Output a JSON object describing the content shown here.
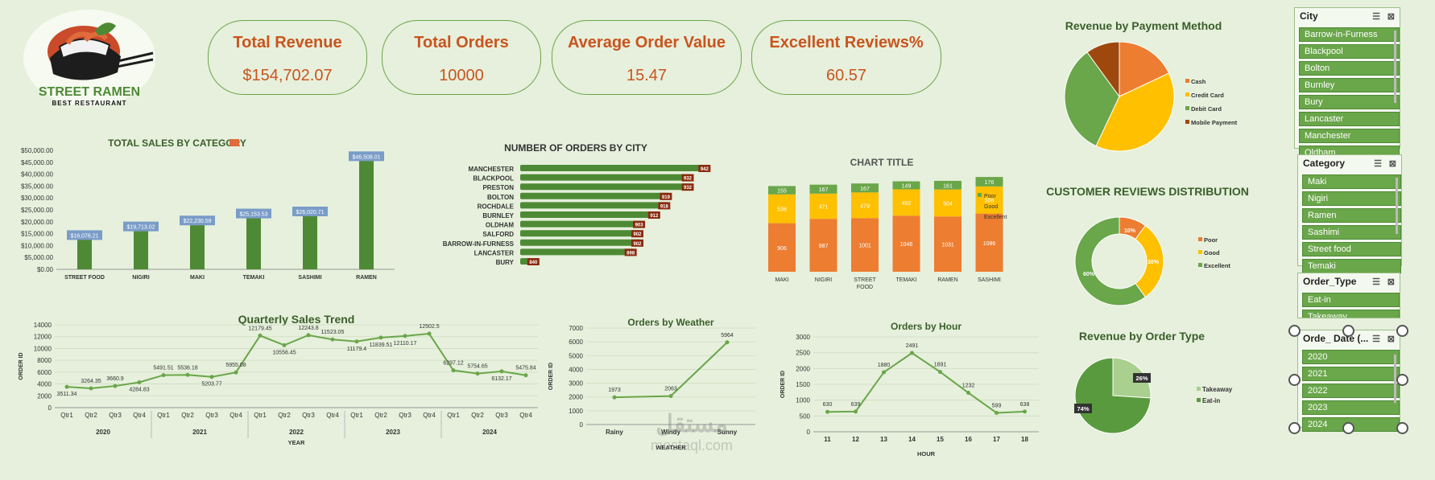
{
  "logo": {
    "name": "STREET RAMEN",
    "tagline": "BEST RESTAURANT"
  },
  "kpis": [
    {
      "title": "Total Revenue",
      "value": "$154,702.07"
    },
    {
      "title": "Total Orders",
      "value": "10000"
    },
    {
      "title": "Average Order Value",
      "value": "15.47"
    },
    {
      "title": "Excellent Reviews%",
      "value": "60.57"
    }
  ],
  "colors": {
    "green": "#6aa64a",
    "darkgreen": "#4e8a35",
    "orange": "#ed7d31",
    "yellow": "#ffc000",
    "brown": "#9e480e",
    "label_blue": "#7a9cc8",
    "title_orange": "#c9541e"
  },
  "slicers": {
    "city": {
      "title": "City",
      "items": [
        "Barrow-in-Furness",
        "Blackpool",
        "Bolton",
        "Burnley",
        "Bury",
        "Lancaster",
        "Manchester",
        "Oldham"
      ]
    },
    "category": {
      "title": "Category",
      "items": [
        "Maki",
        "Nigiri",
        "Ramen",
        "Sashimi",
        "Street food",
        "Temaki"
      ]
    },
    "order_type": {
      "title": "Order_Type",
      "items": [
        "Eat-in",
        "Takeaway"
      ]
    },
    "order_date": {
      "title": "Orde_ Date (...",
      "items": [
        "2020",
        "2021",
        "2022",
        "2023",
        "2024"
      ]
    }
  },
  "watermark": {
    "arabic": "مستقل",
    "latin": "mostaql.com"
  },
  "chart_data": [
    {
      "id": "sales_by_category",
      "type": "bar",
      "title": "TOTAL SALES BY CATEGORY",
      "categories": [
        "STREET FOOD",
        "NIGIRI",
        "MAKI",
        "TEMAKI",
        "SASHIMI",
        "RAMEN"
      ],
      "values": [
        16076.21,
        19713.02,
        22230.59,
        25153.53,
        26020.71,
        46508.01
      ],
      "data_labels": [
        "$16,076.21",
        "$19,713.02",
        "$22,230.59",
        "$25,153.53",
        "$26,020.71",
        "$46,508.01"
      ],
      "ylim": [
        0,
        50000
      ],
      "y_ticks": [
        "$0.00",
        "$5,000.00",
        "$10,000.00",
        "$15,000.00",
        "$20,000.00",
        "$25,000.00",
        "$30,000.00",
        "$35,000.00",
        "$40,000.00",
        "$45,000.00",
        "$50,000.00"
      ],
      "grid": false
    },
    {
      "id": "orders_by_city",
      "type": "bar",
      "orientation": "horizontal",
      "title": "NUMBER OF ORDERS BY CITY",
      "categories": [
        "MANCHESTER",
        "BLACKPOOL",
        "PRESTON",
        "BOLTON",
        "ROCHDALE",
        "BURNLEY",
        "OLDHAM",
        "SALFORD",
        "BARROW-IN-FURNESS",
        "LANCASTER",
        "BURY"
      ],
      "values": [
        942,
        932,
        932,
        919,
        918,
        912,
        903,
        902,
        902,
        898,
        840
      ],
      "xlim": [
        830,
        950
      ]
    },
    {
      "id": "stacked_reviews",
      "type": "bar",
      "stacked": true,
      "title": "CHART TITLE",
      "categories": [
        "MAKI",
        "NIGIRI",
        "STREET FOOD",
        "TEMAKI",
        "RAMEN",
        "SASHIMI"
      ],
      "category_lines": [
        [
          "MAKI"
        ],
        [
          "NIGIRI"
        ],
        [
          "STREET",
          "FOOD"
        ],
        [
          "TEMAKI"
        ],
        [
          "RAMEN"
        ],
        [
          "SASHIMI"
        ]
      ],
      "series": [
        {
          "name": "Excellent",
          "values": [
            906,
            987,
            1001,
            1046,
            1031,
            1086
          ]
        },
        {
          "name": "Good",
          "values": [
            538,
            471,
            479,
            492,
            504,
            506
          ]
        },
        {
          "name": "Poor",
          "values": [
            155,
            167,
            167,
            149,
            161,
            176
          ]
        }
      ],
      "legend": [
        "Poor",
        "Good",
        "Excellent"
      ],
      "legend_position": "right"
    },
    {
      "id": "payment_method",
      "type": "pie",
      "title": "Revenue by Payment Method",
      "labels": [
        "Cash",
        "Credit Card",
        "Debit Card",
        "Mobile Payment"
      ],
      "values": [
        18,
        39,
        33,
        10
      ],
      "legend_position": "right"
    },
    {
      "id": "reviews_distribution",
      "type": "pie",
      "donut": true,
      "title": "CUSTOMER REVIEWS DISTRIBUTION",
      "labels": [
        "Poor",
        "Good",
        "Excellent"
      ],
      "values": [
        10,
        30,
        60
      ],
      "data_labels": [
        "10%",
        "30%",
        "60%"
      ],
      "legend_position": "right"
    },
    {
      "id": "order_type",
      "type": "pie",
      "title": "Revenue by Order Type",
      "labels": [
        "Takeaway",
        "Eat-in"
      ],
      "values": [
        26,
        74
      ],
      "data_labels": [
        "26%",
        "74%"
      ],
      "legend_position": "right"
    },
    {
      "id": "quarterly_trend",
      "type": "line",
      "title": "Quarterly Sales Trend",
      "xlabel": "YEAR",
      "ylabel": "ORDER ID",
      "x": [
        "Qtr1",
        "Qtr2",
        "Qtr3",
        "Qtr4",
        "Qtr1",
        "Qtr2",
        "Qtr3",
        "Qtr4",
        "Qtr1",
        "Qtr2",
        "Qtr3",
        "Qtr4",
        "Qtr1",
        "Qtr2",
        "Qtr3",
        "Qtr4",
        "Qtr1",
        "Qtr2",
        "Qtr3",
        "Qtr4"
      ],
      "years": [
        "2020",
        "2021",
        "2022",
        "2023",
        "2024"
      ],
      "values": [
        3511.34,
        3264.35,
        3660.9,
        4284.83,
        5491.51,
        5536.18,
        5203.77,
        5955.08,
        12179.45,
        10556.45,
        12243.8,
        11523.05,
        11179.4,
        11839.51,
        12110.17,
        12502.5,
        6297.12,
        5754.65,
        6132.17,
        5475.84
      ],
      "data_labels": [
        "3511.34",
        "3264.35",
        "3660.9",
        "4284.83",
        "5491.51",
        "5536.18",
        "5203.77",
        "5955.08",
        "12179.45",
        "10556.45",
        "12243.8",
        "11523.05",
        "11179.4",
        "11839.51",
        "12110.17",
        "12502.5",
        "6297.12",
        "5754.65",
        "6132.17",
        "5475.84"
      ],
      "ylim": [
        0,
        14000
      ],
      "y_ticks": [
        "0",
        "2000",
        "4000",
        "6000",
        "8000",
        "10000",
        "12000",
        "14000"
      ]
    },
    {
      "id": "orders_by_weather",
      "type": "line",
      "title": "Orders by Weather",
      "xlabel": "WEATHER",
      "ylabel": "ORDER ID",
      "x": [
        "Rainy",
        "Windy",
        "Sunny"
      ],
      "values": [
        1973,
        2063,
        5964
      ],
      "ylim": [
        0,
        7000
      ],
      "y_ticks": [
        "0",
        "1000",
        "2000",
        "3000",
        "4000",
        "5000",
        "6000",
        "7000"
      ]
    },
    {
      "id": "orders_by_hour",
      "type": "line",
      "title": "Orders by Hour",
      "xlabel": "HOUR",
      "ylabel": "ORDER ID",
      "x": [
        "11",
        "12",
        "13",
        "14",
        "15",
        "16",
        "17",
        "18"
      ],
      "values": [
        630,
        639,
        1880,
        2491,
        1891,
        1232,
        599,
        638
      ],
      "ylim": [
        0,
        3000
      ],
      "y_ticks": [
        "0",
        "500",
        "1000",
        "1500",
        "2000",
        "2500",
        "3000"
      ]
    }
  ]
}
